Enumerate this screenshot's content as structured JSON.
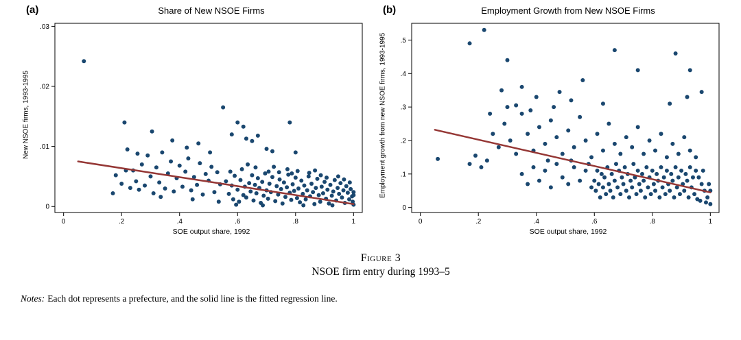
{
  "figure": {
    "panel_a_tag": "(a)",
    "panel_b_tag": "(b)",
    "caption_label": "Figure 3",
    "caption_title": "NSOE firm entry during 1993–5",
    "notes_label": "Notes:",
    "notes_text": "Each dot represents a prefecture, and the solid line is the fitted regression line."
  },
  "chart_data": [
    {
      "type": "scatter",
      "title": "Share of New NSOE Firms",
      "xlabel": "SOE output share, 1992",
      "ylabel": "New NSOE firms, 1993-1995",
      "legend": "none",
      "grid": false,
      "xlim": [
        -0.03,
        1.03
      ],
      "ylim": [
        -0.001,
        0.0305
      ],
      "xtick_values": [
        0,
        0.2,
        0.4,
        0.6,
        0.8,
        1
      ],
      "xtick_labels": [
        "0",
        ".2",
        ".4",
        ".6",
        ".8",
        "1"
      ],
      "ytick_values": [
        0,
        0.01,
        0.02,
        0.03
      ],
      "ytick_labels": [
        "0",
        ".01",
        ".02",
        ".03"
      ],
      "dot_color": "#1a476f",
      "line_color": "#953735",
      "fit_line": {
        "x1": 0.05,
        "y1": 0.0075,
        "x2": 1.0,
        "y2": 0.0004
      },
      "points": [
        [
          0.56,
          0.0042
        ],
        [
          0.57,
          0.0021
        ],
        [
          0.575,
          0.0058
        ],
        [
          0.58,
          0.0035
        ],
        [
          0.585,
          0.0012
        ],
        [
          0.59,
          0.0051
        ],
        [
          0.595,
          0.0003
        ],
        [
          0.6,
          0.0028
        ],
        [
          0.605,
          0.0008
        ],
        [
          0.61,
          0.0044
        ],
        [
          0.615,
          0.0062
        ],
        [
          0.62,
          0.0019
        ],
        [
          0.625,
          0.0033
        ],
        [
          0.63,
          0.0015
        ],
        [
          0.635,
          0.007
        ],
        [
          0.64,
          0.0039
        ],
        [
          0.645,
          0.0025
        ],
        [
          0.65,
          0.0052
        ],
        [
          0.655,
          0.001
        ],
        [
          0.66,
          0.0036
        ],
        [
          0.662,
          0.0065
        ],
        [
          0.665,
          0.0022
        ],
        [
          0.67,
          0.0047
        ],
        [
          0.675,
          0.0031
        ],
        [
          0.68,
          0.0006
        ],
        [
          0.685,
          0.0041
        ],
        [
          0.687,
          0.0002
        ],
        [
          0.69,
          0.0018
        ],
        [
          0.695,
          0.0055
        ],
        [
          0.7,
          0.0027
        ],
        [
          0.705,
          0.0013
        ],
        [
          0.707,
          0.0058
        ],
        [
          0.71,
          0.0038
        ],
        [
          0.715,
          0.0024
        ],
        [
          0.72,
          0.0049
        ],
        [
          0.725,
          0.0066
        ],
        [
          0.73,
          0.0009
        ],
        [
          0.735,
          0.0034
        ],
        [
          0.74,
          0.002
        ],
        [
          0.743,
          0.0057
        ],
        [
          0.745,
          0.0045
        ],
        [
          0.75,
          0.0029
        ],
        [
          0.755,
          0.0005
        ],
        [
          0.76,
          0.004
        ],
        [
          0.765,
          0.0016
        ],
        [
          0.77,
          0.0032
        ],
        [
          0.772,
          0.0062
        ],
        [
          0.775,
          0.0053
        ],
        [
          0.78,
          0.0023
        ],
        [
          0.785,
          0.0011
        ],
        [
          0.787,
          0.0055
        ],
        [
          0.79,
          0.0037
        ],
        [
          0.795,
          0.0026
        ],
        [
          0.8,
          0.0048
        ],
        [
          0.805,
          0.0014
        ],
        [
          0.807,
          0.0059
        ],
        [
          0.81,
          0.003
        ],
        [
          0.815,
          0.0007
        ],
        [
          0.82,
          0.0043
        ],
        [
          0.825,
          0.0021
        ],
        [
          0.827,
          0.0002
        ],
        [
          0.83,
          0.0035
        ],
        [
          0.835,
          0.0012
        ],
        [
          0.84,
          0.0027
        ],
        [
          0.845,
          0.005
        ],
        [
          0.847,
          0.0056
        ],
        [
          0.85,
          0.0017
        ],
        [
          0.855,
          0.0038
        ],
        [
          0.86,
          0.0024
        ],
        [
          0.865,
          0.0004
        ],
        [
          0.867,
          0.006
        ],
        [
          0.87,
          0.0031
        ],
        [
          0.875,
          0.0046
        ],
        [
          0.88,
          0.0019
        ],
        [
          0.885,
          0.0008
        ],
        [
          0.887,
          0.0052
        ],
        [
          0.89,
          0.0033
        ],
        [
          0.895,
          0.0022
        ],
        [
          0.9,
          0.0041
        ],
        [
          0.905,
          0.0013
        ],
        [
          0.907,
          0.0048
        ],
        [
          0.91,
          0.0028
        ],
        [
          0.915,
          0.0005
        ],
        [
          0.92,
          0.0036
        ],
        [
          0.925,
          0.0018
        ],
        [
          0.927,
          0.0002
        ],
        [
          0.93,
          0.0025
        ],
        [
          0.935,
          0.0044
        ],
        [
          0.94,
          0.001
        ],
        [
          0.945,
          0.0031
        ],
        [
          0.947,
          0.005
        ],
        [
          0.95,
          0.0021
        ],
        [
          0.955,
          0.0039
        ],
        [
          0.96,
          0.0015
        ],
        [
          0.965,
          0.0027
        ],
        [
          0.967,
          0.0045
        ],
        [
          0.97,
          0.0006
        ],
        [
          0.975,
          0.0034
        ],
        [
          0.98,
          0.0023
        ],
        [
          0.985,
          0.0012
        ],
        [
          0.987,
          0.004
        ],
        [
          0.99,
          0.0029
        ],
        [
          0.995,
          0.0017
        ],
        [
          0.997,
          0.0008
        ],
        [
          1.0,
          0.0024
        ],
        [
          1.0,
          0.0019
        ],
        [
          1.0,
          0.0003
        ],
        [
          0.2,
          0.0038
        ],
        [
          0.21,
          0.014
        ],
        [
          0.215,
          0.006
        ],
        [
          0.22,
          0.0095
        ],
        [
          0.23,
          0.0031
        ],
        [
          0.24,
          0.006
        ],
        [
          0.25,
          0.0042
        ],
        [
          0.255,
          0.0088
        ],
        [
          0.26,
          0.0028
        ],
        [
          0.27,
          0.007
        ],
        [
          0.28,
          0.0035
        ],
        [
          0.29,
          0.0085
        ],
        [
          0.3,
          0.005
        ],
        [
          0.305,
          0.0125
        ],
        [
          0.31,
          0.0022
        ],
        [
          0.32,
          0.0065
        ],
        [
          0.33,
          0.004
        ],
        [
          0.335,
          0.0016
        ],
        [
          0.34,
          0.009
        ],
        [
          0.35,
          0.003
        ],
        [
          0.36,
          0.0055
        ],
        [
          0.37,
          0.0075
        ],
        [
          0.375,
          0.011
        ],
        [
          0.38,
          0.0025
        ],
        [
          0.39,
          0.0047
        ],
        [
          0.4,
          0.0068
        ],
        [
          0.41,
          0.0033
        ],
        [
          0.42,
          0.0058
        ],
        [
          0.425,
          0.0098
        ],
        [
          0.43,
          0.008
        ],
        [
          0.44,
          0.0027
        ],
        [
          0.445,
          0.0012
        ],
        [
          0.45,
          0.0049
        ],
        [
          0.46,
          0.0036
        ],
        [
          0.465,
          0.0105
        ],
        [
          0.47,
          0.0072
        ],
        [
          0.48,
          0.002
        ],
        [
          0.49,
          0.0054
        ],
        [
          0.5,
          0.0043
        ],
        [
          0.505,
          0.009
        ],
        [
          0.51,
          0.0066
        ],
        [
          0.52,
          0.0024
        ],
        [
          0.53,
          0.0057
        ],
        [
          0.535,
          0.0008
        ],
        [
          0.54,
          0.0037
        ],
        [
          0.55,
          0.0165
        ],
        [
          0.07,
          0.0242
        ],
        [
          0.17,
          0.0022
        ],
        [
          0.18,
          0.0052
        ],
        [
          0.58,
          0.012
        ],
        [
          0.6,
          0.014
        ],
        [
          0.62,
          0.0133
        ],
        [
          0.63,
          0.0113
        ],
        [
          0.65,
          0.0109
        ],
        [
          0.67,
          0.0118
        ],
        [
          0.7,
          0.0096
        ],
        [
          0.72,
          0.0092
        ],
        [
          0.78,
          0.014
        ],
        [
          0.8,
          0.009
        ]
      ]
    },
    {
      "type": "scatter",
      "title": "Employment Growth from New NSOE Firms",
      "xlabel": "SOE output share, 1992",
      "ylabel": "Employment growth from new NSOE firms, 1993-1995",
      "legend": "none",
      "grid": false,
      "xlim": [
        -0.03,
        1.03
      ],
      "ylim": [
        -0.015,
        0.55
      ],
      "xtick_values": [
        0,
        0.2,
        0.4,
        0.6,
        0.8,
        1
      ],
      "xtick_labels": [
        "0",
        ".2",
        ".4",
        ".6",
        ".8",
        "1"
      ],
      "ytick_values": [
        0,
        0.1,
        0.2,
        0.3,
        0.4,
        0.5
      ],
      "ytick_labels": [
        "0",
        ".1",
        ".2",
        ".3",
        ".4",
        ".5"
      ],
      "dot_color": "#1a476f",
      "line_color": "#953735",
      "fit_line": {
        "x1": 0.05,
        "y1": 0.232,
        "x2": 1.0,
        "y2": 0.045
      },
      "points": [
        [
          0.6,
          0.08
        ],
        [
          0.605,
          0.05
        ],
        [
          0.61,
          0.11
        ],
        [
          0.615,
          0.07
        ],
        [
          0.62,
          0.03
        ],
        [
          0.625,
          0.1
        ],
        [
          0.63,
          0.06
        ],
        [
          0.635,
          0.09
        ],
        [
          0.64,
          0.04
        ],
        [
          0.645,
          0.12
        ],
        [
          0.65,
          0.07
        ],
        [
          0.655,
          0.05
        ],
        [
          0.66,
          0.1
        ],
        [
          0.665,
          0.03
        ],
        [
          0.67,
          0.08
        ],
        [
          0.675,
          0.13
        ],
        [
          0.68,
          0.06
        ],
        [
          0.685,
          0.11
        ],
        [
          0.69,
          0.04
        ],
        [
          0.695,
          0.09
        ],
        [
          0.7,
          0.07
        ],
        [
          0.705,
          0.12
        ],
        [
          0.71,
          0.05
        ],
        [
          0.715,
          0.1
        ],
        [
          0.72,
          0.03
        ],
        [
          0.725,
          0.08
        ],
        [
          0.73,
          0.06
        ],
        [
          0.735,
          0.13
        ],
        [
          0.74,
          0.09
        ],
        [
          0.745,
          0.04
        ],
        [
          0.75,
          0.11
        ],
        [
          0.755,
          0.07
        ],
        [
          0.76,
          0.05
        ],
        [
          0.765,
          0.1
        ],
        [
          0.77,
          0.08
        ],
        [
          0.775,
          0.03
        ],
        [
          0.78,
          0.12
        ],
        [
          0.785,
          0.06
        ],
        [
          0.79,
          0.09
        ],
        [
          0.795,
          0.04
        ],
        [
          0.8,
          0.11
        ],
        [
          0.805,
          0.07
        ],
        [
          0.81,
          0.05
        ],
        [
          0.815,
          0.1
        ],
        [
          0.82,
          0.08
        ],
        [
          0.825,
          0.03
        ],
        [
          0.83,
          0.12
        ],
        [
          0.835,
          0.06
        ],
        [
          0.84,
          0.09
        ],
        [
          0.845,
          0.04
        ],
        [
          0.85,
          0.11
        ],
        [
          0.855,
          0.07
        ],
        [
          0.86,
          0.05
        ],
        [
          0.865,
          0.1
        ],
        [
          0.87,
          0.08
        ],
        [
          0.875,
          0.03
        ],
        [
          0.88,
          0.12
        ],
        [
          0.885,
          0.06
        ],
        [
          0.89,
          0.09
        ],
        [
          0.895,
          0.04
        ],
        [
          0.9,
          0.11
        ],
        [
          0.905,
          0.07
        ],
        [
          0.91,
          0.05
        ],
        [
          0.915,
          0.1
        ],
        [
          0.92,
          0.08
        ],
        [
          0.925,
          0.03
        ],
        [
          0.93,
          0.12
        ],
        [
          0.935,
          0.06
        ],
        [
          0.94,
          0.09
        ],
        [
          0.945,
          0.04
        ],
        [
          0.95,
          0.11
        ],
        [
          0.955,
          0.025
        ],
        [
          0.96,
          0.09
        ],
        [
          0.965,
          0.02
        ],
        [
          0.97,
          0.07
        ],
        [
          0.975,
          0.11
        ],
        [
          0.98,
          0.05
        ],
        [
          0.985,
          0.015
        ],
        [
          0.99,
          0.03
        ],
        [
          0.995,
          0.07
        ],
        [
          1.0,
          0.05
        ],
        [
          1.0,
          0.01
        ],
        [
          0.25,
          0.22
        ],
        [
          0.27,
          0.18
        ],
        [
          0.29,
          0.25
        ],
        [
          0.31,
          0.2
        ],
        [
          0.33,
          0.16
        ],
        [
          0.35,
          0.28
        ],
        [
          0.37,
          0.22
        ],
        [
          0.39,
          0.17
        ],
        [
          0.41,
          0.24
        ],
        [
          0.43,
          0.19
        ],
        [
          0.45,
          0.26
        ],
        [
          0.47,
          0.21
        ],
        [
          0.49,
          0.16
        ],
        [
          0.51,
          0.23
        ],
        [
          0.53,
          0.18
        ],
        [
          0.55,
          0.27
        ],
        [
          0.57,
          0.2
        ],
        [
          0.59,
          0.15
        ],
        [
          0.61,
          0.22
        ],
        [
          0.63,
          0.17
        ],
        [
          0.65,
          0.25
        ],
        [
          0.67,
          0.19
        ],
        [
          0.69,
          0.16
        ],
        [
          0.71,
          0.21
        ],
        [
          0.73,
          0.18
        ],
        [
          0.75,
          0.24
        ],
        [
          0.77,
          0.16
        ],
        [
          0.79,
          0.2
        ],
        [
          0.81,
          0.17
        ],
        [
          0.83,
          0.22
        ],
        [
          0.85,
          0.15
        ],
        [
          0.87,
          0.19
        ],
        [
          0.89,
          0.16
        ],
        [
          0.91,
          0.21
        ],
        [
          0.93,
          0.17
        ],
        [
          0.95,
          0.15
        ],
        [
          0.46,
          0.3
        ],
        [
          0.38,
          0.29
        ],
        [
          0.3,
          0.3
        ],
        [
          0.24,
          0.28
        ],
        [
          0.06,
          0.145
        ],
        [
          0.17,
          0.13
        ],
        [
          0.19,
          0.155
        ],
        [
          0.21,
          0.12
        ],
        [
          0.23,
          0.14
        ],
        [
          0.35,
          0.1
        ],
        [
          0.37,
          0.07
        ],
        [
          0.39,
          0.12
        ],
        [
          0.41,
          0.08
        ],
        [
          0.43,
          0.11
        ],
        [
          0.45,
          0.06
        ],
        [
          0.47,
          0.13
        ],
        [
          0.49,
          0.09
        ],
        [
          0.51,
          0.07
        ],
        [
          0.53,
          0.12
        ],
        [
          0.55,
          0.08
        ],
        [
          0.57,
          0.11
        ],
        [
          0.59,
          0.06
        ],
        [
          0.44,
          0.14
        ],
        [
          0.52,
          0.14
        ],
        [
          0.58,
          0.13
        ],
        [
          0.22,
          0.53
        ],
        [
          0.17,
          0.49
        ],
        [
          0.3,
          0.44
        ],
        [
          0.67,
          0.47
        ],
        [
          0.88,
          0.46
        ],
        [
          0.93,
          0.41
        ],
        [
          0.75,
          0.41
        ],
        [
          0.56,
          0.38
        ],
        [
          0.35,
          0.36
        ],
        [
          0.28,
          0.35
        ],
        [
          0.4,
          0.33
        ],
        [
          0.52,
          0.32
        ],
        [
          0.63,
          0.31
        ],
        [
          0.97,
          0.345
        ],
        [
          0.92,
          0.33
        ],
        [
          0.86,
          0.31
        ],
        [
          0.33,
          0.305
        ],
        [
          0.48,
          0.345
        ]
      ]
    }
  ]
}
